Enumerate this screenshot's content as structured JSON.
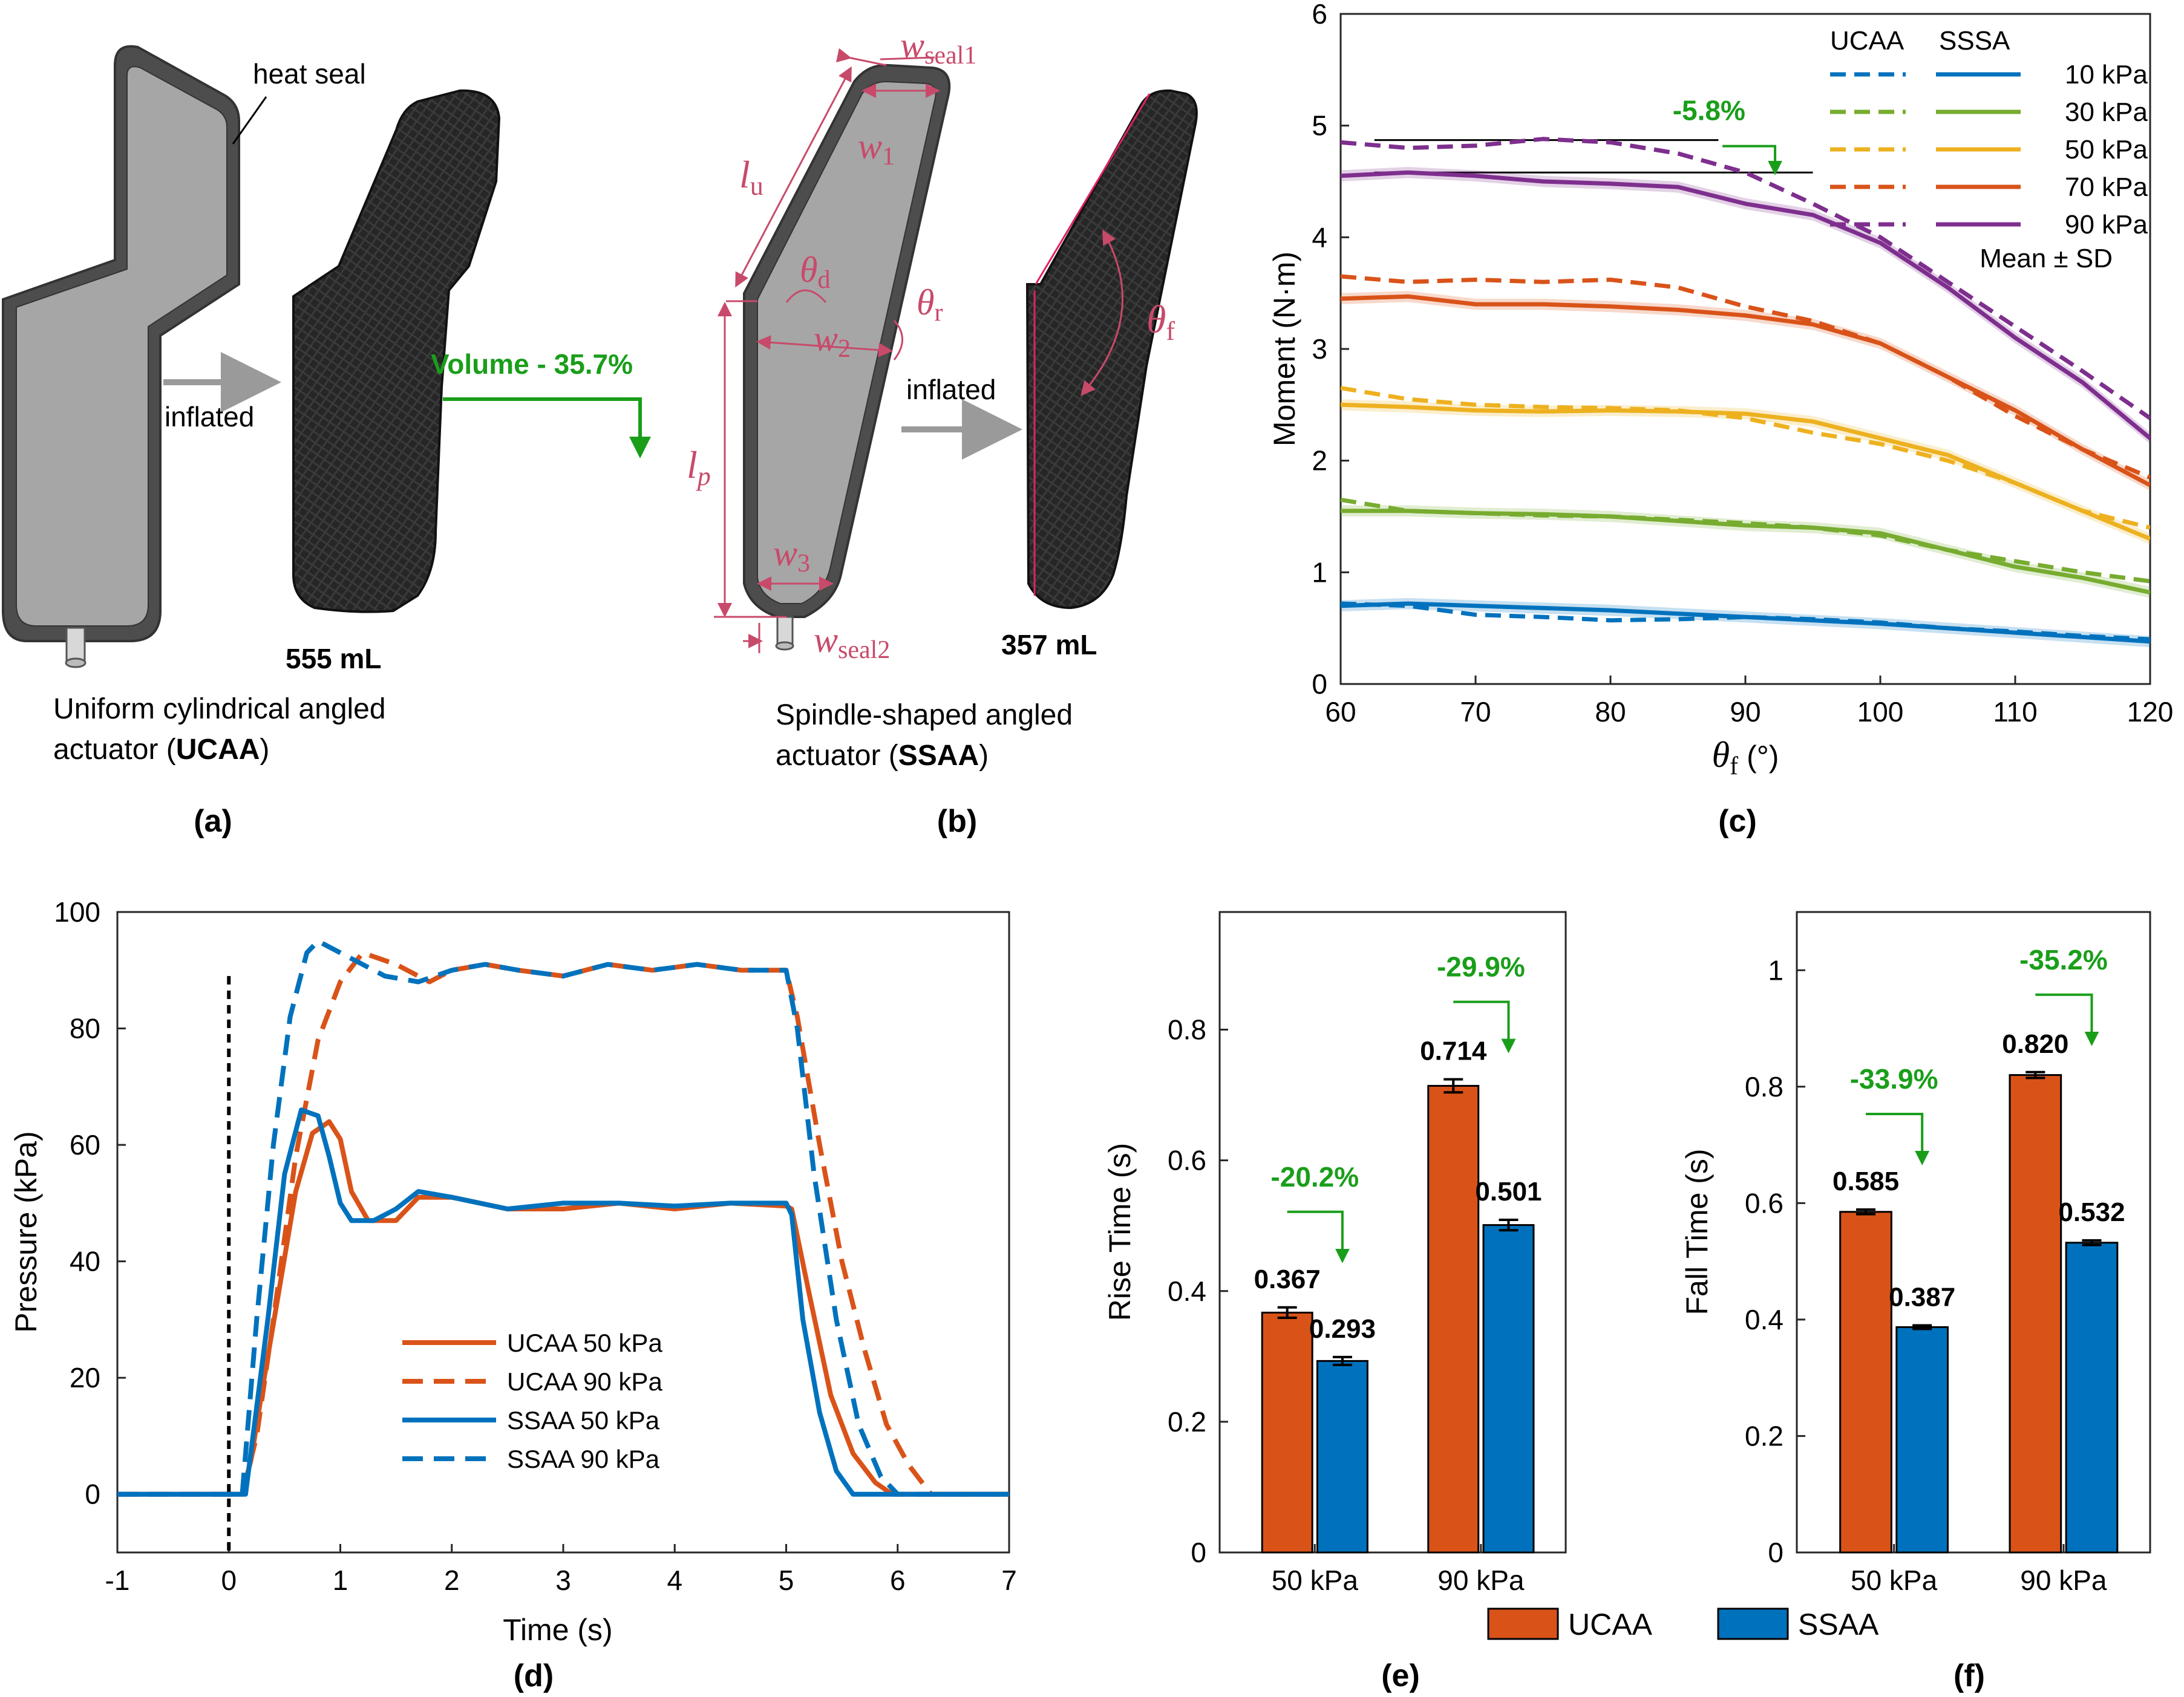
{
  "panel_labels": [
    "(a)",
    "(b)",
    "(c)",
    "(d)",
    "(e)",
    "(f)"
  ],
  "panel_a": {
    "heat_seal": "heat seal",
    "inflated": "inflated",
    "volume": "555 mL",
    "caption_line1": "Uniform cylindrical angled",
    "caption_line2_pre": "actuator (",
    "caption_bold": "UCAA",
    "caption_line2_post": ")"
  },
  "volume_change": "Volume - 35.7%",
  "panel_b": {
    "inflated": "inflated",
    "volume": "357 mL",
    "caption_line1": "Spindle-shaped angled",
    "caption_line2_pre": "actuator (",
    "caption_bold": "SSAA",
    "caption_line2_post": ")",
    "symbols": {
      "w_seal1": "w",
      "w_seal1_sub": "seal1",
      "w1": "w",
      "w1_sub": "1",
      "lu": "l",
      "lu_sub": "u",
      "theta_d": "θ",
      "theta_d_sub": "d",
      "theta_r": "θ",
      "theta_r_sub": "r",
      "w2": "w",
      "w2_sub": "2",
      "lp": "l",
      "lp_sub": "p",
      "w3": "w",
      "w3_sub": "3",
      "w_seal2": "w",
      "w_seal2_sub": "seal2",
      "theta_f": "θ",
      "theta_f_sub": "f"
    }
  },
  "colors": {
    "orange": "#d95319",
    "blue": "#0072bd",
    "green": "#77ac30",
    "yellow": "#edb120",
    "purple": "#7e2f8e",
    "pct_green": "#1a9e1a",
    "annotation": "#c84a6a",
    "actuator_fill": "#a6a6a6",
    "actuator_border": "#4d4d4d"
  },
  "chart_data": [
    {
      "id": "c",
      "type": "line",
      "xlabel": "θ",
      "xlabel_sub": "f",
      "xlabel_unit": "(°)",
      "ylabel": "Moment (N·m)",
      "xlim": [
        60,
        120
      ],
      "ylim": [
        0,
        6
      ],
      "xticks": [
        60,
        70,
        80,
        90,
        100,
        110,
        120
      ],
      "yticks": [
        0,
        1,
        2,
        3,
        4,
        5,
        6
      ],
      "legend_headers": [
        "UCAA",
        "SSSA"
      ],
      "legend_extra": "Mean ± SD",
      "annotation": "-5.8%",
      "reference_lines": [
        4.87,
        4.58
      ],
      "series": [
        {
          "name": "10 kPa",
          "color": "blue",
          "x": [
            60,
            65,
            70,
            75,
            80,
            85,
            90,
            95,
            100,
            105,
            110,
            115,
            120
          ],
          "ucaa": [
            0.72,
            0.7,
            0.62,
            0.6,
            0.57,
            0.58,
            0.6,
            0.58,
            0.55,
            0.5,
            0.47,
            0.43,
            0.4
          ],
          "ssaa": [
            0.7,
            0.72,
            0.7,
            0.68,
            0.66,
            0.63,
            0.6,
            0.57,
            0.54,
            0.5,
            0.46,
            0.42,
            0.38
          ]
        },
        {
          "name": "30 kPa",
          "color": "green",
          "x": [
            60,
            65,
            70,
            75,
            80,
            85,
            90,
            95,
            100,
            105,
            110,
            115,
            120
          ],
          "ucaa": [
            1.65,
            1.55,
            1.53,
            1.51,
            1.5,
            1.47,
            1.44,
            1.4,
            1.33,
            1.2,
            1.1,
            1.0,
            0.92
          ],
          "ssaa": [
            1.55,
            1.55,
            1.53,
            1.52,
            1.5,
            1.46,
            1.42,
            1.4,
            1.35,
            1.2,
            1.05,
            0.95,
            0.82
          ]
        },
        {
          "name": "50 kPa",
          "color": "yellow",
          "x": [
            60,
            65,
            70,
            75,
            80,
            85,
            90,
            95,
            100,
            105,
            110,
            115,
            120
          ],
          "ucaa": [
            2.65,
            2.55,
            2.5,
            2.48,
            2.47,
            2.45,
            2.38,
            2.25,
            2.15,
            2.0,
            1.8,
            1.55,
            1.4
          ],
          "ssaa": [
            2.5,
            2.48,
            2.45,
            2.44,
            2.45,
            2.44,
            2.42,
            2.35,
            2.2,
            2.05,
            1.8,
            1.55,
            1.3
          ]
        },
        {
          "name": "70 kPa",
          "color": "orange",
          "x": [
            60,
            65,
            70,
            75,
            80,
            85,
            90,
            95,
            100,
            105,
            110,
            115,
            120
          ],
          "ucaa": [
            3.65,
            3.6,
            3.62,
            3.6,
            3.62,
            3.55,
            3.38,
            3.25,
            3.05,
            2.75,
            2.4,
            2.1,
            1.85
          ],
          "ssaa": [
            3.45,
            3.47,
            3.4,
            3.4,
            3.38,
            3.35,
            3.3,
            3.22,
            3.05,
            2.75,
            2.45,
            2.1,
            1.78
          ]
        },
        {
          "name": "90 kPa",
          "color": "purple",
          "x": [
            60,
            65,
            70,
            75,
            80,
            85,
            90,
            95,
            100,
            105,
            110,
            115,
            120
          ],
          "ucaa": [
            4.85,
            4.8,
            4.82,
            4.88,
            4.85,
            4.75,
            4.58,
            4.3,
            4.0,
            3.6,
            3.2,
            2.8,
            2.38
          ],
          "ssaa": [
            4.55,
            4.58,
            4.55,
            4.5,
            4.48,
            4.45,
            4.3,
            4.2,
            3.95,
            3.55,
            3.1,
            2.7,
            2.2
          ]
        }
      ]
    },
    {
      "id": "d",
      "type": "line",
      "xlabel": "Time (s)",
      "ylabel": "Pressure (kPa)",
      "xlim": [
        -1,
        7
      ],
      "ylim": [
        -10,
        100
      ],
      "xticks": [
        -1,
        0,
        1,
        2,
        3,
        4,
        5,
        6,
        7
      ],
      "yticks": [
        0,
        20,
        40,
        60,
        80,
        100
      ],
      "series": [
        {
          "name": "UCAA 50 kPa",
          "color": "orange",
          "style": "solid",
          "x": [
            -1,
            0.12,
            0.2,
            0.3,
            0.45,
            0.6,
            0.75,
            0.9,
            1.0,
            1.1,
            1.25,
            1.5,
            1.7,
            2.0,
            2.5,
            3.0,
            3.5,
            4.0,
            4.5,
            5.0,
            5.05,
            5.2,
            5.4,
            5.6,
            5.8,
            5.95,
            7
          ],
          "values": [
            0,
            0,
            6,
            18,
            35,
            52,
            62,
            64,
            61,
            52,
            47,
            47,
            51,
            51,
            49,
            49,
            50,
            49,
            50,
            49.5,
            49,
            35,
            17,
            7,
            2,
            0,
            0
          ]
        },
        {
          "name": "UCAA 90 kPa",
          "color": "orange",
          "style": "dashed",
          "x": [
            -1,
            0.12,
            0.25,
            0.4,
            0.6,
            0.8,
            1.0,
            1.2,
            1.5,
            1.8,
            2.0,
            2.3,
            2.6,
            3.0,
            3.4,
            3.8,
            4.2,
            4.6,
            5.0,
            5.1,
            5.3,
            5.5,
            5.7,
            5.9,
            6.1,
            6.3,
            7
          ],
          "values": [
            0,
            0,
            10,
            30,
            58,
            78,
            88,
            93,
            91,
            88,
            90,
            91,
            90,
            89,
            91,
            90,
            91,
            90,
            90,
            82,
            60,
            40,
            25,
            12,
            5,
            0,
            0
          ]
        },
        {
          "name": "SSAA 50 kPa",
          "color": "blue",
          "style": "solid",
          "x": [
            -1,
            0.15,
            0.25,
            0.35,
            0.5,
            0.65,
            0.8,
            0.9,
            1.0,
            1.1,
            1.3,
            1.5,
            1.7,
            2.0,
            2.5,
            3.0,
            3.5,
            4.0,
            4.5,
            5.0,
            5.05,
            5.15,
            5.3,
            5.45,
            5.6,
            7
          ],
          "values": [
            0,
            0,
            15,
            30,
            55,
            66,
            65,
            58,
            50,
            47,
            47,
            49,
            52,
            51,
            49,
            50,
            50,
            49.5,
            50,
            50,
            48,
            30,
            14,
            4,
            0,
            0
          ]
        },
        {
          "name": "SSAA 90 kPa",
          "color": "blue",
          "style": "dashed",
          "x": [
            -1,
            0.12,
            0.25,
            0.4,
            0.55,
            0.7,
            0.8,
            0.9,
            1.1,
            1.4,
            1.7,
            2.0,
            2.3,
            2.6,
            3.0,
            3.4,
            3.8,
            4.2,
            4.6,
            5.0,
            5.1,
            5.25,
            5.45,
            5.65,
            5.85,
            6.0,
            7
          ],
          "values": [
            0,
            0,
            30,
            60,
            82,
            93,
            95,
            94,
            92,
            89,
            88,
            90,
            91,
            90,
            89,
            91,
            90,
            91,
            90,
            90,
            80,
            55,
            30,
            12,
            3,
            0,
            0
          ]
        }
      ]
    },
    {
      "id": "e",
      "type": "bar",
      "ylabel": "Rise Time (s)",
      "ylim": [
        0,
        0.98
      ],
      "yticks": [
        0,
        0.2,
        0.4,
        0.6,
        0.8
      ],
      "categories": [
        "50 kPa",
        "90 kPa"
      ],
      "series": [
        {
          "name": "UCAA",
          "color": "orange",
          "values": [
            0.367,
            0.714
          ],
          "labels": [
            "0.367",
            "0.714"
          ],
          "sd": [
            0.008,
            0.01
          ]
        },
        {
          "name": "SSAA",
          "color": "blue",
          "values": [
            0.293,
            0.501
          ],
          "labels": [
            "0.293",
            "0.501"
          ],
          "sd": [
            0.006,
            0.008
          ]
        }
      ],
      "annotations": [
        "-20.2%",
        "-29.9%"
      ]
    },
    {
      "id": "f",
      "type": "bar",
      "ylabel": "Fall Time (s)",
      "ylim": [
        0,
        1.1
      ],
      "yticks": [
        0,
        0.2,
        0.4,
        0.6,
        0.8,
        1
      ],
      "categories": [
        "50 kPa",
        "90 kPa"
      ],
      "series": [
        {
          "name": "UCAA",
          "color": "orange",
          "values": [
            0.585,
            0.82
          ],
          "labels": [
            "0.585",
            "0.820"
          ],
          "sd": [
            0.004,
            0.005
          ]
        },
        {
          "name": "SSAA",
          "color": "blue",
          "values": [
            0.387,
            0.532
          ],
          "labels": [
            "0.387",
            "0.532"
          ],
          "sd": [
            0.003,
            0.004
          ]
        }
      ],
      "annotations": [
        "-33.9%",
        "-35.2%"
      ]
    }
  ]
}
